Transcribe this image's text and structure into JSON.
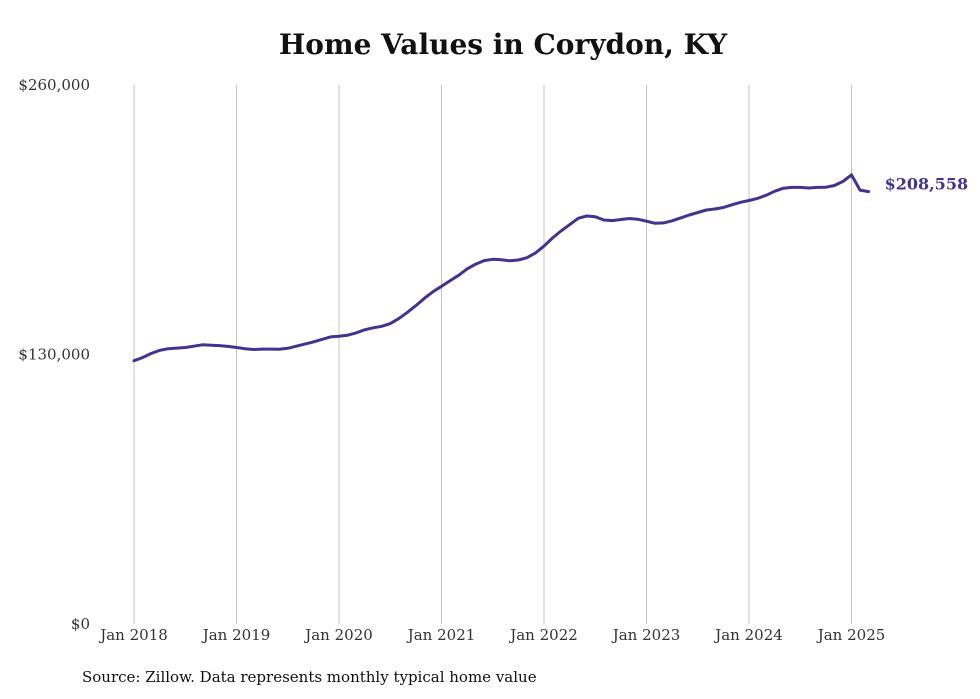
{
  "chart_data": {
    "type": "line",
    "title": "Home Values in Corydon, KY",
    "source": "Source: Zillow. Data represents monthly typical home value",
    "xlabel": "",
    "ylabel": "",
    "ylim": [
      0,
      260000
    ],
    "y_ticks": [
      {
        "value": 0,
        "label": "$0"
      },
      {
        "value": 130000,
        "label": "$130,000"
      },
      {
        "value": 260000,
        "label": "$260,000"
      }
    ],
    "x_ticks": [
      {
        "value": "2018-01",
        "label": "Jan 2018"
      },
      {
        "value": "2019-01",
        "label": "Jan 2019"
      },
      {
        "value": "2020-01",
        "label": "Jan 2020"
      },
      {
        "value": "2021-01",
        "label": "Jan 2021"
      },
      {
        "value": "2022-01",
        "label": "Jan 2022"
      },
      {
        "value": "2023-01",
        "label": "Jan 2023"
      },
      {
        "value": "2024-01",
        "label": "Jan 2024"
      },
      {
        "value": "2025-01",
        "label": "Jan 2025"
      }
    ],
    "grid": "vertical",
    "end_label": "$208,558",
    "color": "#3f3590",
    "series": [
      {
        "points": [
          [
            "2018-01",
            127000
          ],
          [
            "2018-02",
            128500
          ],
          [
            "2018-03",
            130500
          ],
          [
            "2018-04",
            132000
          ],
          [
            "2018-05",
            132800
          ],
          [
            "2018-06",
            133100
          ],
          [
            "2018-07",
            133400
          ],
          [
            "2018-08",
            134000
          ],
          [
            "2018-09",
            134700
          ],
          [
            "2018-10",
            134500
          ],
          [
            "2018-11",
            134300
          ],
          [
            "2018-12",
            133900
          ],
          [
            "2019-01",
            133400
          ],
          [
            "2019-02",
            132800
          ],
          [
            "2019-03",
            132400
          ],
          [
            "2019-04",
            132600
          ],
          [
            "2019-05",
            132600
          ],
          [
            "2019-06",
            132500
          ],
          [
            "2019-07",
            133000
          ],
          [
            "2019-08",
            134000
          ],
          [
            "2019-09",
            135000
          ],
          [
            "2019-10",
            136100
          ],
          [
            "2019-11",
            137300
          ],
          [
            "2019-12",
            138500
          ],
          [
            "2020-01",
            138800
          ],
          [
            "2020-02",
            139300
          ],
          [
            "2020-03",
            140400
          ],
          [
            "2020-04",
            141900
          ],
          [
            "2020-05",
            142900
          ],
          [
            "2020-06",
            143600
          ],
          [
            "2020-07",
            144900
          ],
          [
            "2020-08",
            147300
          ],
          [
            "2020-09",
            150300
          ],
          [
            "2020-10",
            153600
          ],
          [
            "2020-11",
            157100
          ],
          [
            "2020-12",
            160300
          ],
          [
            "2021-01",
            162900
          ],
          [
            "2021-02",
            165600
          ],
          [
            "2021-03",
            168200
          ],
          [
            "2021-04",
            171300
          ],
          [
            "2021-05",
            173600
          ],
          [
            "2021-06",
            175300
          ],
          [
            "2021-07",
            175900
          ],
          [
            "2021-08",
            175700
          ],
          [
            "2021-09",
            175200
          ],
          [
            "2021-10",
            175600
          ],
          [
            "2021-11",
            176700
          ],
          [
            "2021-12",
            179000
          ],
          [
            "2022-01",
            182300
          ],
          [
            "2022-02",
            186200
          ],
          [
            "2022-03",
            189600
          ],
          [
            "2022-04",
            192600
          ],
          [
            "2022-05",
            195700
          ],
          [
            "2022-06",
            196800
          ],
          [
            "2022-07",
            196400
          ],
          [
            "2022-08",
            194900
          ],
          [
            "2022-09",
            194600
          ],
          [
            "2022-10",
            195100
          ],
          [
            "2022-11",
            195600
          ],
          [
            "2022-12",
            195200
          ],
          [
            "2023-01",
            194300
          ],
          [
            "2023-02",
            193300
          ],
          [
            "2023-03",
            193500
          ],
          [
            "2023-04",
            194500
          ],
          [
            "2023-05",
            195900
          ],
          [
            "2023-06",
            197300
          ],
          [
            "2023-07",
            198500
          ],
          [
            "2023-08",
            199700
          ],
          [
            "2023-09",
            200200
          ],
          [
            "2023-10",
            200900
          ],
          [
            "2023-11",
            202200
          ],
          [
            "2023-12",
            203400
          ],
          [
            "2024-01",
            204300
          ],
          [
            "2024-02",
            205300
          ],
          [
            "2024-03",
            206800
          ],
          [
            "2024-04",
            208700
          ],
          [
            "2024-05",
            210200
          ],
          [
            "2024-06",
            210600
          ],
          [
            "2024-07",
            210600
          ],
          [
            "2024-08",
            210300
          ],
          [
            "2024-09",
            210600
          ],
          [
            "2024-10",
            210700
          ],
          [
            "2024-11",
            211500
          ],
          [
            "2024-12",
            213500
          ],
          [
            "2025-01",
            216700
          ],
          [
            "2025-02",
            209300
          ],
          [
            "2025-03",
            208558
          ]
        ]
      }
    ]
  }
}
